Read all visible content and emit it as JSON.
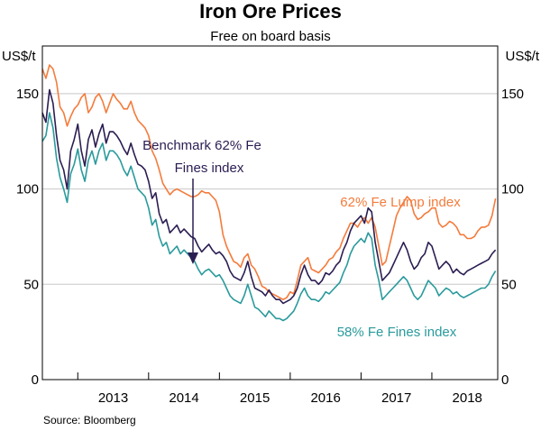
{
  "chart_data": {
    "type": "line",
    "title": "Iron Ore Prices",
    "subtitle": "Free on board basis",
    "ylabel_left": "US$/t",
    "ylabel_right": "US$/t",
    "ylim": [
      0,
      175
    ],
    "yticks": [
      0,
      50,
      100,
      150
    ],
    "year_labels": [
      "2013",
      "2014",
      "2015",
      "2016",
      "2017",
      "2018"
    ],
    "x_unit": "fractional year",
    "xlim": [
      2012.5,
      2018.93
    ],
    "source": "Source:    Bloomberg",
    "annotations": {
      "benchmark_line1": "Benchmark 62% Fe",
      "benchmark_line2": "Fines index",
      "lump": "62% Fe Lump index",
      "fines58": "58% Fe Fines index"
    },
    "colors": {
      "lump": "#F47B3B",
      "benchmark": "#2B1D52",
      "fines58": "#2A9A9C",
      "grid": "#C8C8C8",
      "axis": "#000000",
      "text": "#000000"
    },
    "series": [
      {
        "name": "62% Fe Lump index",
        "color": "#F47B3B",
        "x": [
          2012.5,
          2012.55,
          2012.6,
          2012.65,
          2012.7,
          2012.75,
          2012.8,
          2012.85,
          2012.9,
          2012.95,
          2013.0,
          2013.05,
          2013.1,
          2013.15,
          2013.2,
          2013.25,
          2013.3,
          2013.35,
          2013.4,
          2013.45,
          2013.5,
          2013.55,
          2013.6,
          2013.65,
          2013.7,
          2013.75,
          2013.8,
          2013.85,
          2013.9,
          2013.95,
          2014.0,
          2014.05,
          2014.1,
          2014.15,
          2014.2,
          2014.25,
          2014.3,
          2014.35,
          2014.4,
          2014.45,
          2014.5,
          2014.55,
          2014.6,
          2014.65,
          2014.7,
          2014.75,
          2014.8,
          2014.85,
          2014.9,
          2014.95,
          2015.0,
          2015.05,
          2015.1,
          2015.15,
          2015.2,
          2015.25,
          2015.3,
          2015.35,
          2015.4,
          2015.45,
          2015.5,
          2015.55,
          2015.6,
          2015.65,
          2015.7,
          2015.75,
          2015.8,
          2015.85,
          2015.9,
          2015.95,
          2016.0,
          2016.05,
          2016.1,
          2016.15,
          2016.2,
          2016.25,
          2016.3,
          2016.35,
          2016.4,
          2016.45,
          2016.5,
          2016.55,
          2016.6,
          2016.65,
          2016.7,
          2016.75,
          2016.8,
          2016.85,
          2016.9,
          2016.95,
          2017.0,
          2017.05,
          2017.1,
          2017.15,
          2017.2,
          2017.25,
          2017.3,
          2017.35,
          2017.4,
          2017.45,
          2017.5,
          2017.55,
          2017.6,
          2017.65,
          2017.7,
          2017.75,
          2017.8,
          2017.85,
          2017.9,
          2017.95,
          2018.0,
          2018.05,
          2018.1,
          2018.15,
          2018.2,
          2018.25,
          2018.3,
          2018.35,
          2018.4,
          2018.45,
          2018.5,
          2018.55,
          2018.6,
          2018.65,
          2018.7,
          2018.75,
          2018.8,
          2018.85,
          2018.9
        ],
        "y": [
          163,
          158,
          165,
          163,
          156,
          143,
          140,
          133,
          138,
          142,
          144,
          148,
          150,
          140,
          143,
          148,
          150,
          146,
          140,
          145,
          150,
          147,
          145,
          142,
          142,
          146,
          140,
          136,
          134,
          132,
          128,
          120,
          116,
          110,
          103,
          100,
          97,
          99,
          100,
          99,
          98,
          97,
          96,
          96,
          97,
          99,
          98,
          98,
          96,
          94,
          88,
          76,
          70,
          66,
          62,
          61,
          59,
          64,
          66,
          60,
          58,
          54,
          49,
          48,
          46,
          45,
          44,
          43,
          42,
          43,
          46,
          45,
          52,
          60,
          62,
          64,
          58,
          57,
          56,
          58,
          60,
          63,
          64,
          67,
          69,
          74,
          78,
          82,
          82,
          80,
          83,
          85,
          82,
          85,
          80,
          70,
          60,
          62,
          70,
          78,
          86,
          90,
          93,
          96,
          94,
          87,
          84,
          85,
          87,
          88,
          90,
          90,
          82,
          80,
          81,
          83,
          82,
          80,
          76,
          76,
          74,
          74,
          75,
          78,
          80,
          80,
          81,
          86,
          95
        ]
      },
      {
        "name": "Benchmark 62% Fe Fines index",
        "color": "#2B1D52",
        "x": [
          2012.5,
          2012.55,
          2012.6,
          2012.65,
          2012.7,
          2012.75,
          2012.8,
          2012.85,
          2012.9,
          2012.95,
          2013.0,
          2013.05,
          2013.1,
          2013.15,
          2013.2,
          2013.25,
          2013.3,
          2013.35,
          2013.4,
          2013.45,
          2013.5,
          2013.55,
          2013.6,
          2013.65,
          2013.7,
          2013.75,
          2013.8,
          2013.85,
          2013.9,
          2013.95,
          2014.0,
          2014.05,
          2014.1,
          2014.15,
          2014.2,
          2014.25,
          2014.3,
          2014.35,
          2014.4,
          2014.45,
          2014.5,
          2014.55,
          2014.6,
          2014.65,
          2014.7,
          2014.75,
          2014.8,
          2014.85,
          2014.9,
          2014.95,
          2015.0,
          2015.05,
          2015.1,
          2015.15,
          2015.2,
          2015.25,
          2015.3,
          2015.35,
          2015.4,
          2015.45,
          2015.5,
          2015.55,
          2015.6,
          2015.65,
          2015.7,
          2015.75,
          2015.8,
          2015.85,
          2015.9,
          2015.95,
          2016.0,
          2016.05,
          2016.1,
          2016.15,
          2016.2,
          2016.25,
          2016.3,
          2016.35,
          2016.4,
          2016.45,
          2016.5,
          2016.55,
          2016.6,
          2016.65,
          2016.7,
          2016.75,
          2016.8,
          2016.85,
          2016.9,
          2016.95,
          2017.0,
          2017.05,
          2017.1,
          2017.15,
          2017.2,
          2017.25,
          2017.3,
          2017.35,
          2017.4,
          2017.45,
          2017.5,
          2017.55,
          2017.6,
          2017.65,
          2017.7,
          2017.75,
          2017.8,
          2017.85,
          2017.9,
          2017.95,
          2018.0,
          2018.05,
          2018.1,
          2018.15,
          2018.2,
          2018.25,
          2018.3,
          2018.35,
          2018.4,
          2018.45,
          2018.5,
          2018.55,
          2018.6,
          2018.65,
          2018.7,
          2018.75,
          2018.8,
          2018.85,
          2018.9
        ],
        "y": [
          140,
          135,
          152,
          145,
          128,
          115,
          110,
          100,
          120,
          126,
          134,
          120,
          112,
          126,
          131,
          122,
          129,
          134,
          124,
          130,
          130,
          128,
          125,
          121,
          118,
          124,
          118,
          113,
          112,
          110,
          104,
          95,
          98,
          87,
          82,
          84,
          77,
          79,
          81,
          77,
          79,
          77,
          75,
          74,
          70,
          67,
          69,
          71,
          68,
          66,
          67,
          65,
          62,
          57,
          54,
          53,
          52,
          56,
          62,
          54,
          48,
          47,
          46,
          44,
          47,
          44,
          42,
          42,
          40,
          41,
          42,
          44,
          48,
          55,
          60,
          55,
          52,
          52,
          50,
          52,
          56,
          55,
          57,
          60,
          62,
          68,
          72,
          78,
          82,
          84,
          86,
          82,
          90,
          88,
          72,
          62,
          52,
          54,
          56,
          60,
          64,
          68,
          72,
          68,
          62,
          58,
          60,
          64,
          66,
          72,
          70,
          64,
          58,
          60,
          62,
          60,
          56,
          58,
          56,
          55,
          57,
          58,
          59,
          60,
          61,
          62,
          63,
          66,
          68
        ]
      },
      {
        "name": "58% Fe Fines index",
        "color": "#2A9A9C",
        "x": [
          2012.5,
          2012.55,
          2012.6,
          2012.65,
          2012.7,
          2012.75,
          2012.8,
          2012.85,
          2012.9,
          2012.95,
          2013.0,
          2013.05,
          2013.1,
          2013.15,
          2013.2,
          2013.25,
          2013.3,
          2013.35,
          2013.4,
          2013.45,
          2013.5,
          2013.55,
          2013.6,
          2013.65,
          2013.7,
          2013.75,
          2013.8,
          2013.85,
          2013.9,
          2013.95,
          2014.0,
          2014.05,
          2014.1,
          2014.15,
          2014.2,
          2014.25,
          2014.3,
          2014.35,
          2014.4,
          2014.45,
          2014.5,
          2014.55,
          2014.6,
          2014.65,
          2014.7,
          2014.75,
          2014.8,
          2014.85,
          2014.9,
          2014.95,
          2015.0,
          2015.05,
          2015.1,
          2015.15,
          2015.2,
          2015.25,
          2015.3,
          2015.35,
          2015.4,
          2015.45,
          2015.5,
          2015.55,
          2015.6,
          2015.65,
          2015.7,
          2015.75,
          2015.8,
          2015.85,
          2015.9,
          2015.95,
          2016.0,
          2016.05,
          2016.1,
          2016.15,
          2016.2,
          2016.25,
          2016.3,
          2016.35,
          2016.4,
          2016.45,
          2016.5,
          2016.55,
          2016.6,
          2016.65,
          2016.7,
          2016.75,
          2016.8,
          2016.85,
          2016.9,
          2016.95,
          2017.0,
          2017.05,
          2017.1,
          2017.15,
          2017.2,
          2017.25,
          2017.3,
          2017.35,
          2017.4,
          2017.45,
          2017.5,
          2017.55,
          2017.6,
          2017.65,
          2017.7,
          2017.75,
          2017.8,
          2017.85,
          2017.9,
          2017.95,
          2018.0,
          2018.05,
          2018.1,
          2018.15,
          2018.2,
          2018.25,
          2018.3,
          2018.35,
          2018.4,
          2018.45,
          2018.5,
          2018.55,
          2018.6,
          2018.65,
          2018.7,
          2018.75,
          2018.8,
          2018.85,
          2018.9
        ],
        "y": [
          125,
          128,
          140,
          132,
          116,
          106,
          100,
          93,
          108,
          113,
          121,
          110,
          104,
          115,
          120,
          113,
          120,
          124,
          115,
          120,
          120,
          118,
          115,
          110,
          107,
          112,
          106,
          100,
          98,
          96,
          90,
          81,
          84,
          75,
          70,
          72,
          66,
          68,
          70,
          66,
          68,
          66,
          64,
          62,
          58,
          55,
          57,
          58,
          56,
          54,
          55,
          52,
          48,
          44,
          42,
          41,
          40,
          44,
          50,
          44,
          38,
          37,
          35,
          33,
          36,
          34,
          32,
          32,
          31,
          32,
          34,
          36,
          40,
          45,
          48,
          44,
          42,
          42,
          41,
          43,
          46,
          45,
          47,
          49,
          51,
          56,
          60,
          66,
          70,
          72,
          74,
          72,
          77,
          74,
          60,
          52,
          42,
          44,
          46,
          48,
          50,
          52,
          54,
          52,
          48,
          44,
          42,
          44,
          48,
          52,
          50,
          48,
          44,
          46,
          48,
          47,
          45,
          46,
          44,
          43,
          44,
          45,
          46,
          47,
          48,
          48,
          50,
          54,
          57
        ]
      }
    ]
  }
}
